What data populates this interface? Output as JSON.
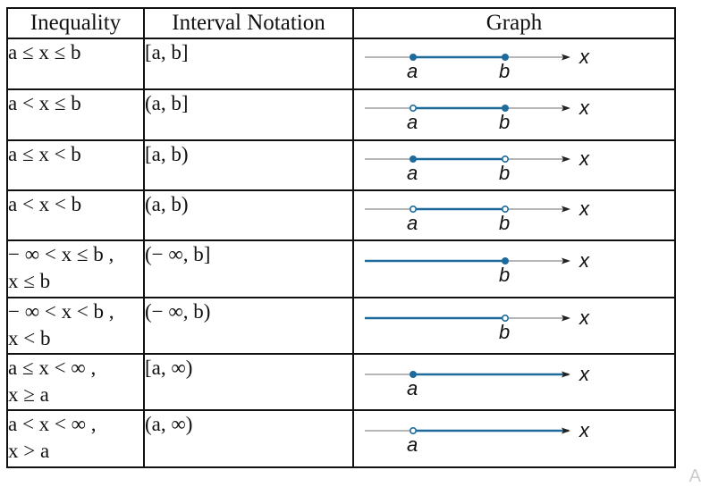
{
  "headers": {
    "inequality": "Inequality",
    "notation": "Interval Notation",
    "graph": "Graph"
  },
  "rows": [
    {
      "ineq1": "a ≤ x ≤ b",
      "ineq2": "",
      "notation": "[a, b]",
      "graph": {
        "a": "closed",
        "b": "closed",
        "left_inf": false,
        "right_inf": false
      }
    },
    {
      "ineq1": "a < x ≤ b",
      "ineq2": "",
      "notation": "(a, b]",
      "graph": {
        "a": "open",
        "b": "closed",
        "left_inf": false,
        "right_inf": false
      }
    },
    {
      "ineq1": "a ≤ x < b",
      "ineq2": "",
      "notation": "[a, b)",
      "graph": {
        "a": "closed",
        "b": "open",
        "left_inf": false,
        "right_inf": false
      }
    },
    {
      "ineq1": "a < x < b",
      "ineq2": "",
      "notation": "(a, b)",
      "graph": {
        "a": "open",
        "b": "open",
        "left_inf": false,
        "right_inf": false
      }
    },
    {
      "ineq1": "− ∞ < x ≤ b ,",
      "ineq2": "x ≤ b",
      "notation": "(− ∞, b]",
      "graph": {
        "a": null,
        "b": "closed",
        "left_inf": true,
        "right_inf": false
      }
    },
    {
      "ineq1": "− ∞ < x < b ,",
      "ineq2": "x < b",
      "notation": "(− ∞, b)",
      "graph": {
        "a": null,
        "b": "open",
        "left_inf": true,
        "right_inf": false
      }
    },
    {
      "ineq1": "a ≤ x < ∞ ,",
      "ineq2": "x ≥ a",
      "notation": "[a, ∞)",
      "graph": {
        "a": "closed",
        "b": null,
        "left_inf": false,
        "right_inf": true
      }
    },
    {
      "ineq1": "a < x < ∞ ,",
      "ineq2": "x > a",
      "notation": "(a, ∞)",
      "graph": {
        "a": "open",
        "b": null,
        "left_inf": false,
        "right_inf": true
      }
    }
  ],
  "labels": {
    "a": "a",
    "b": "b",
    "x": "x"
  },
  "colors": {
    "segment": "#1e6a9a",
    "axis": "#8a8a8a",
    "arrow": "#222222",
    "border": "#111111"
  },
  "watermark": "A"
}
